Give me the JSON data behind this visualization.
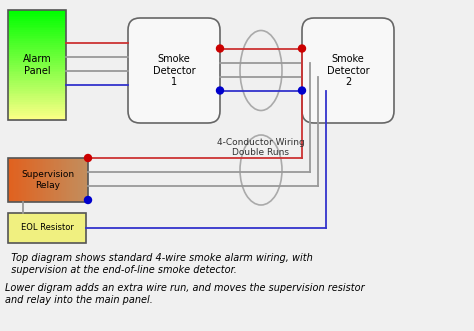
{
  "bg_color": "#f0f0f0",
  "alarm_panel_label": "Alarm\nPanel",
  "smoke1_label": "Smoke\nDetector\n1",
  "smoke2_label": "Smoke\nDetector\n2",
  "relay_label": "Supervision\nRelay",
  "eol_label": "EOL Resistor",
  "wiring_label": "4-Conductor Wiring\nDouble Runs",
  "caption1": "  Top diagram shows standard 4-wire smoke alarm wiring, with",
  "caption2": "  supervision at the end-of-line smoke detector.",
  "caption3": "Lower digram adds an extra wire run, and moves the supervision resistor",
  "caption4": "and relay into the main panel.",
  "alarm_grad_top": "#00ff00",
  "alarm_grad_bot": "#ffff88",
  "smoke_fill": "#f8f8f8",
  "eol_fill": "#f0f080",
  "wire_red": "#cc3333",
  "wire_gray": "#999999",
  "wire_blue": "#3333cc",
  "dot_red": "#cc0000",
  "dot_blue": "#0000cc",
  "ellipse_color": "#aaaaaa"
}
